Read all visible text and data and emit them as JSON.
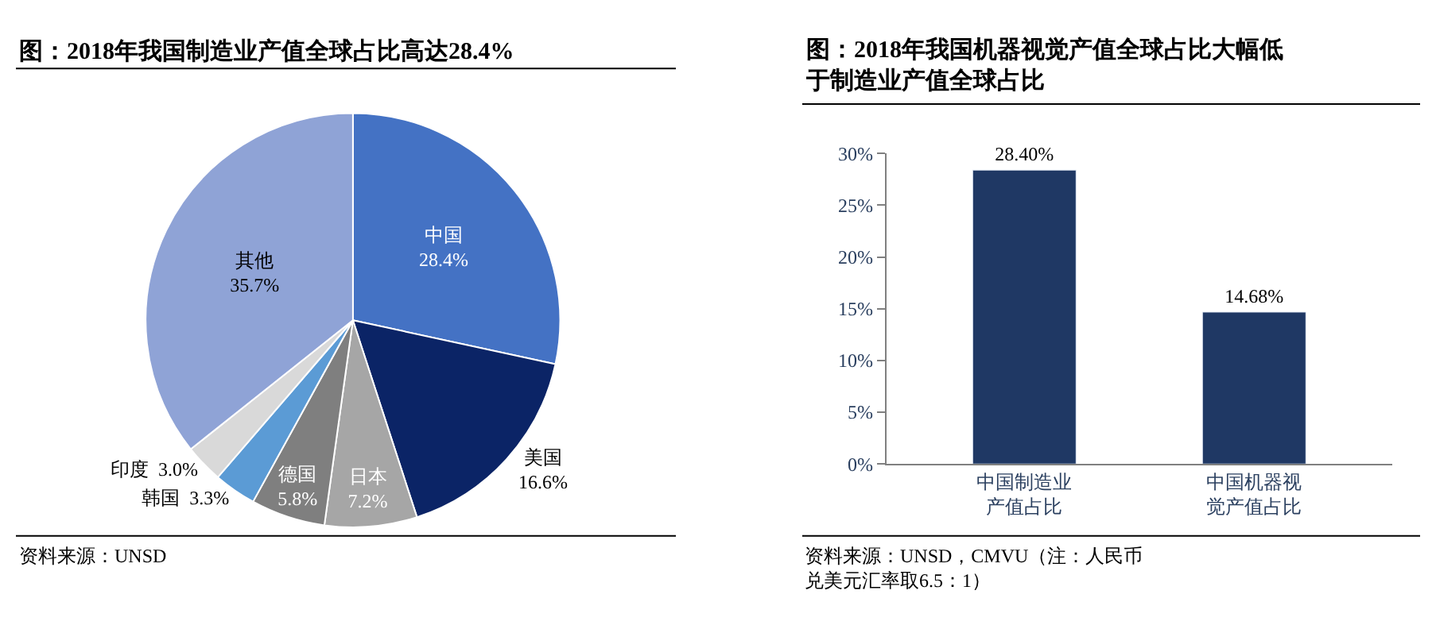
{
  "chart_data": [
    {
      "type": "pie",
      "title": "图：2018年我国制造业产值全球占比高达28.4%",
      "categories": [
        "中国",
        "美国",
        "日本",
        "德国",
        "韩国",
        "印度",
        "其他"
      ],
      "values": [
        28.4,
        16.6,
        7.2,
        5.8,
        3.3,
        3.0,
        35.7
      ],
      "value_labels": [
        "28.4%",
        "16.6%",
        "7.2%",
        "5.8%",
        "3.3%",
        "3.0%",
        "35.7%"
      ],
      "colors": [
        "#4472c4",
        "#0b2466",
        "#a6a6a6",
        "#7f7f7f",
        "#5b9bd5",
        "#d9d9d9",
        "#8fa3d6"
      ],
      "annotations": [
        "资料来源：UNSD"
      ]
    },
    {
      "type": "bar",
      "title": "图：2018年我国机器视觉产值全球占比大幅低于制造业产值全球占比",
      "categories": [
        "中国制造业产值占比",
        "中国机器视觉产值占比"
      ],
      "values": [
        28.4,
        14.68
      ],
      "value_labels": [
        "28.40%",
        "14.68%"
      ],
      "color": "#1f3864",
      "ylim": [
        0,
        30
      ],
      "yticks": [
        {
          "value": 0,
          "label": "0%"
        },
        {
          "value": 5,
          "label": "5%"
        },
        {
          "value": 10,
          "label": "10%"
        },
        {
          "value": 15,
          "label": "15%"
        },
        {
          "value": 20,
          "label": "20%"
        },
        {
          "value": 25,
          "label": "25%"
        },
        {
          "value": 30,
          "label": "30%"
        }
      ],
      "annotations": [
        "资料来源：UNSD，CMVU（注：人民币兑美元汇率取6.5：1）"
      ]
    }
  ]
}
